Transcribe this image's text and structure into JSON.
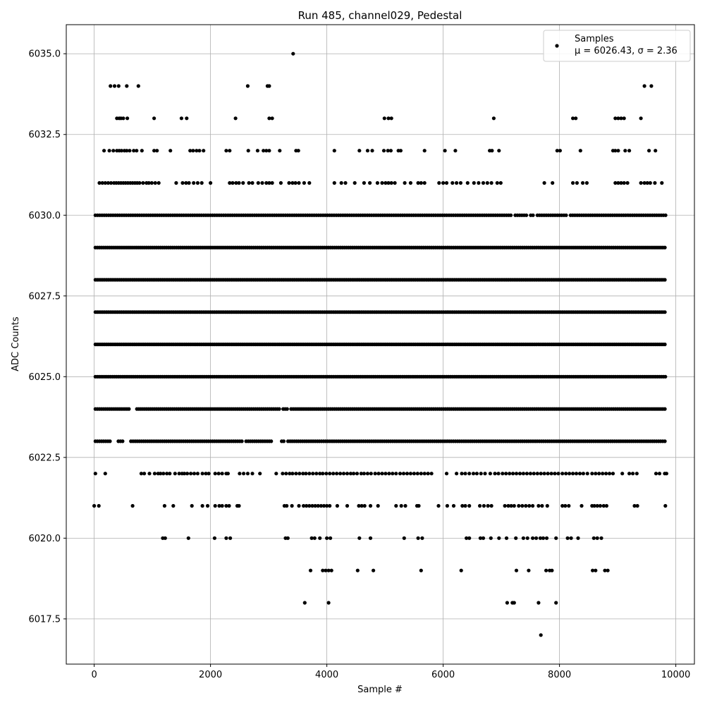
{
  "chart_data": {
    "type": "scatter",
    "title": "Run 485, channel029, Pedestal",
    "xlabel": "Sample #",
    "ylabel": "ADC Counts",
    "xlim": [
      -480,
      10320
    ],
    "ylim": [
      6016.1,
      6035.9
    ],
    "x_ticks": [
      0,
      2000,
      4000,
      6000,
      8000,
      10000
    ],
    "y_ticks": [
      6017.5,
      6020.0,
      6022.5,
      6025.0,
      6027.5,
      6030.0,
      6032.5,
      6035.0
    ],
    "x_tick_labels": [
      "0",
      "2000",
      "4000",
      "6000",
      "8000",
      "10000"
    ],
    "y_tick_labels": [
      "6017.5",
      "6020.0",
      "6022.5",
      "6025.0",
      "6027.5",
      "6030.0",
      "6032.5",
      "6035.0"
    ],
    "grid": true,
    "marker_color": "#000000",
    "legend": {
      "position": "top-right",
      "entries": [
        {
          "label": "Samples",
          "sublabel": "μ = 6026.43, σ = 2.36"
        }
      ]
    },
    "series": [
      {
        "name": "Samples",
        "levels": [
          {
            "y": 6035,
            "x": [
              3420
            ]
          },
          {
            "y": 6034,
            "x": [
              280,
              350,
              420,
              560,
              760,
              2640,
              2980,
              3010,
              9460,
              9580
            ]
          },
          {
            "y": 6033,
            "x": [
              390,
              430,
              460,
              500,
              570,
              1030,
              1500,
              1590,
              2430,
              3010,
              3060,
              4990,
              5060,
              5110,
              6870,
              8230,
              8280,
              8960,
              9010,
              9060,
              9110,
              9400
            ]
          },
          {
            "y": 6032,
            "x": [
              170,
              260,
              330,
              390,
              430,
              470,
              520,
              560,
              610,
              680,
              730,
              820,
              1030,
              1080,
              1310,
              1650,
              1700,
              1760,
              1810,
              1880,
              2270,
              2330,
              2650,
              2810,
              2910,
              2960,
              3010,
              3190,
              3470,
              3510,
              4130,
              4560,
              4700,
              4780,
              4980,
              5050,
              5100,
              5230,
              5270,
              5680,
              6030,
              6210,
              6800,
              6840,
              6960,
              7960,
              8010,
              8360,
              8920,
              8960,
              9010,
              9130,
              9200,
              9540,
              9650
            ]
          },
          {
            "y": 6031,
            "x": [
              90,
              140,
              190,
              240,
              290,
              340,
              380,
              420,
              460,
              500,
              540,
              580,
              620,
              660,
              700,
              740,
              780,
              840,
              900,
              940,
              990,
              1050,
              1110,
              1410,
              1520,
              1580,
              1630,
              1710,
              1780,
              1850,
              2000,
              2330,
              2380,
              2440,
              2490,
              2560,
              2660,
              2720,
              2820,
              2890,
              2960,
              3010,
              3060,
              3210,
              3350,
              3410,
              3460,
              3520,
              3610,
              3700,
              4130,
              4250,
              4320,
              4480,
              4640,
              4740,
              4870,
              4950,
              5010,
              5060,
              5110,
              5170,
              5340,
              5440,
              5570,
              5620,
              5680,
              5930,
              6000,
              6060,
              6160,
              6230,
              6300,
              6420,
              6530,
              6610,
              6690,
              6760,
              6830,
              6930,
              6990,
              7740,
              7880,
              8230,
              8300,
              8400,
              8470,
              8960,
              9010,
              9060,
              9110,
              9170,
              9400,
              9460,
              9510,
              9560,
              9640,
              9760
            ]
          },
          {
            "y": 6030,
            "xmin": 20,
            "xmax": 9840,
            "step": 38,
            "gaps": [
              [
                7185,
                7215
              ],
              [
                7455,
                7480
              ],
              [
                7560,
                7590
              ],
              [
                8145,
                8170
              ]
            ]
          },
          {
            "y": 6029,
            "xmin": 20,
            "xmax": 9840,
            "step": 34,
            "gaps": []
          },
          {
            "y": 6028,
            "xmin": 20,
            "xmax": 9840,
            "step": 32,
            "gaps": []
          },
          {
            "y": 6027,
            "xmin": 20,
            "xmax": 9840,
            "step": 32,
            "gaps": []
          },
          {
            "y": 6026,
            "xmin": 20,
            "xmax": 9840,
            "step": 32,
            "gaps": []
          },
          {
            "y": 6025,
            "xmin": 20,
            "xmax": 9840,
            "step": 33,
            "gaps": []
          },
          {
            "y": 6024,
            "xmin": 20,
            "xmax": 9840,
            "step": 34,
            "gaps": [
              [
                620,
                700
              ],
              [
                3190,
                3230
              ],
              [
                3350,
                3380
              ]
            ]
          },
          {
            "y": 6023,
            "xmin": 20,
            "xmax": 9840,
            "step": 36,
            "gaps": [
              [
                300,
                400
              ],
              [
                500,
                620
              ],
              [
                2550,
                2600
              ],
              [
                3080,
                3190
              ],
              [
                3280,
                3320
              ]
            ]
          },
          {
            "y": 6022,
            "x": [
              20,
              190,
              810,
              860,
              950,
              1040,
              1100,
              1140,
              1190,
              1250,
              1300,
              1390,
              1460,
              1510,
              1550,
              1600,
              1660,
              1720,
              1780,
              1860,
              1920,
              1970,
              2080,
              2140,
              2200,
              2270,
              2300,
              2500,
              2570,
              2640,
              2720,
              2850,
              3130,
              3240,
              3300,
              3360,
              3410,
              3470,
              3530,
              3590,
              3640,
              3700,
              3760,
              3820,
              3880,
              3930,
              3990,
              4050,
              4110,
              4170,
              4230,
              4290,
              4350,
              4410,
              4460,
              4520,
              4590,
              4640,
              4700,
              4760,
              4830,
              4890,
              4950,
              5010,
              5070,
              5130,
              5190,
              5260,
              5320,
              5380,
              5440,
              5500,
              5560,
              5620,
              5680,
              5740,
              5800,
              6060,
              6230,
              6320,
              6380,
              6450,
              6520,
              6580,
              6650,
              6720,
              6810,
              6890,
              6950,
              7020,
              7080,
              7140,
              7200,
              7260,
              7320,
              7380,
              7440,
              7500,
              7560,
              7620,
              7680,
              7740,
              7800,
              7860,
              7920,
              7980,
              8050,
              8110,
              8170,
              8230,
              8290,
              8350,
              8410,
              8480,
              8560,
              8620,
              8680,
              8740,
              8800,
              8860,
              8920,
              9080,
              9200,
              9260,
              9330,
              9660,
              9720,
              9810,
              9840
            ]
          },
          {
            "y": 6021,
            "x": [
              0,
              80,
              660,
              1210,
              1360,
              1680,
              1860,
              1950,
              2080,
              2150,
              2200,
              2270,
              2320,
              2460,
              2490,
              3270,
              3310,
              3400,
              3520,
              3600,
              3650,
              3700,
              3750,
              3800,
              3850,
              3900,
              3950,
              4000,
              4050,
              4180,
              4350,
              4550,
              4600,
              4650,
              4750,
              4880,
              5190,
              5280,
              5350,
              5550,
              5580,
              5920,
              6070,
              6180,
              6330,
              6380,
              6450,
              6630,
              6700,
              6770,
              6830,
              7060,
              7120,
              7170,
              7220,
              7300,
              7360,
              7420,
              7480,
              7540,
              7640,
              7700,
              7790,
              8050,
              8100,
              8160,
              8380,
              8560,
              8600,
              8650,
              8700,
              8760,
              8810,
              9290,
              9340,
              9820
            ]
          },
          {
            "y": 6020,
            "x": [
              1180,
              1220,
              1620,
              2070,
              2270,
              2340,
              3290,
              3330,
              3740,
              3790,
              3880,
              4000,
              4060,
              4560,
              4750,
              5330,
              5570,
              5640,
              6400,
              6450,
              6640,
              6690,
              6820,
              6960,
              7090,
              7250,
              7380,
              7450,
              7540,
              7600,
              7670,
              7720,
              7780,
              7940,
              8140,
              8200,
              8320,
              8590,
              8650,
              8720
            ]
          },
          {
            "y": 6019,
            "x": [
              3720,
              3930,
              3980,
              4030,
              4080,
              4530,
              4800,
              5620,
              6310,
              7260,
              7470,
              7770,
              7830,
              7870,
              8570,
              8620,
              8780,
              8830
            ]
          },
          {
            "y": 6018,
            "x": [
              3620,
              4030,
              7100,
              7190,
              7220,
              7640,
              7940
            ]
          },
          {
            "y": 6017,
            "x": [
              7680
            ]
          }
        ]
      }
    ]
  }
}
